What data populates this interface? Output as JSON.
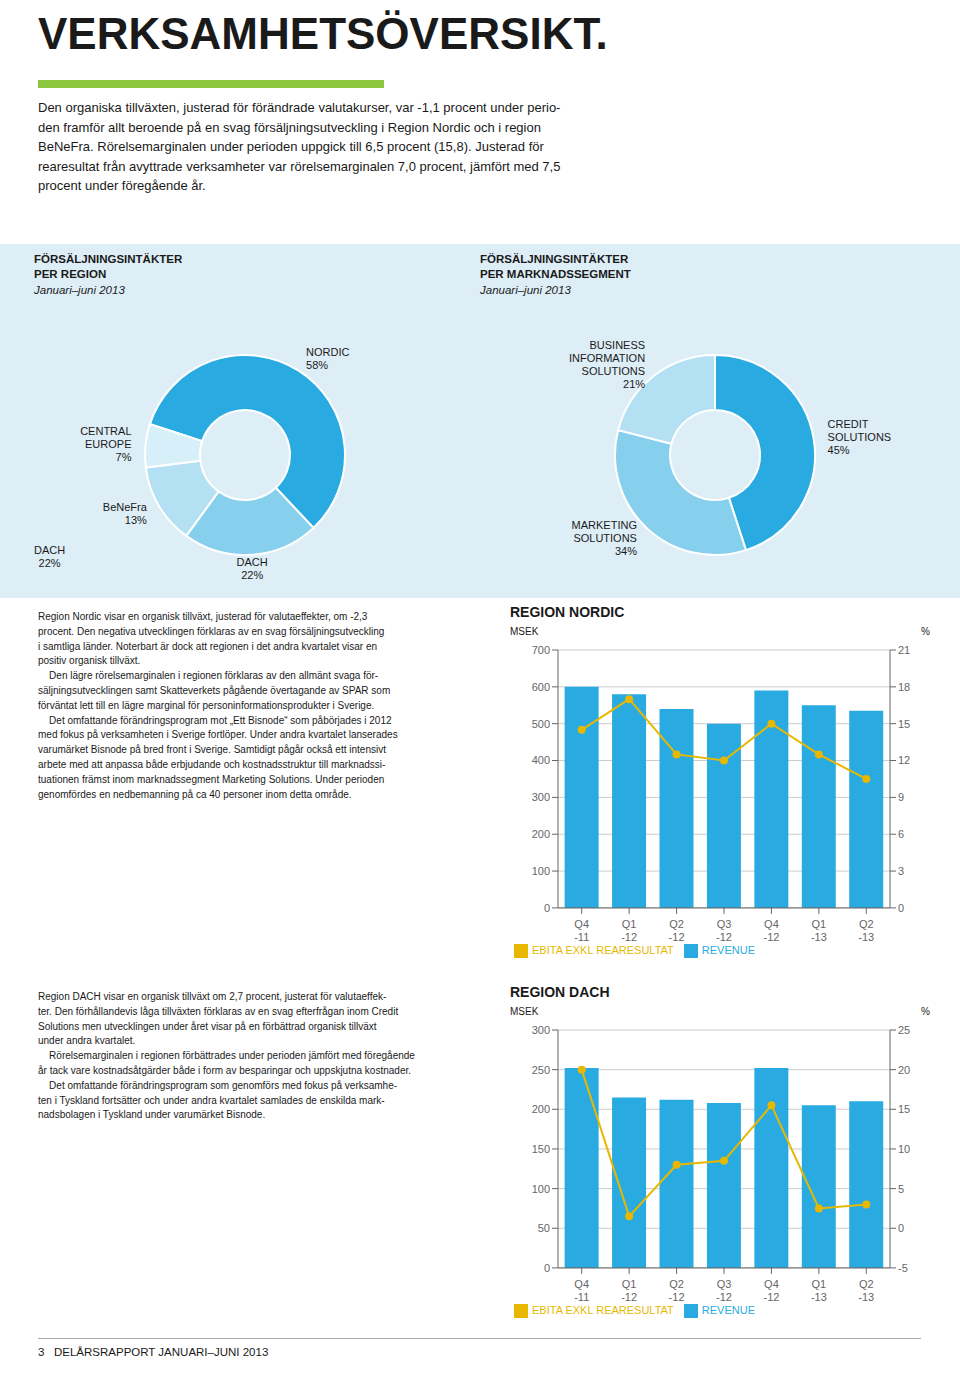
{
  "title": "VERKSAMHETSÖVERSIKT.",
  "annotations": [
    "Den organiska tillväxten, justerad för förändrade valutakurser, var -1,1 procent under perio-\nden framför allt beroende på en svag försäljningsutveckling i Region Nordic och i region\nBeNeFra. Rörelsemarginalen under perioden uppgick till 6,5 procent (15,8). Justerad för\nrearesultat från avyttrade verksamheter var rörelsemarginalen 7,0 procent, jämfört med 7,5\nprocent under föregående år.",
    "3   DELÅRSRAPPORT JANUARI–JUNI 2013"
  ],
  "chart_data": [
    {
      "type": "donut",
      "title": "FÖRSÄLJNINGSINTÄKTER\nPER REGION",
      "subtitle": "Januari–juni 2013",
      "categories": [
        "NORDIC",
        "DACH",
        "BeNeFra",
        "CENTRAL\nEUROPE"
      ],
      "values": [
        58,
        22,
        13,
        7
      ],
      "value_labels": [
        "58%",
        "22%",
        "13%",
        "7%"
      ],
      "colors": [
        "#29abe2",
        "#87d0ed",
        "#b3e0f2",
        "#d6eff8"
      ],
      "data_labels": true,
      "annotations": [
        "DACH\n22%"
      ]
    },
    {
      "type": "donut",
      "title": "FÖRSÄLJNINGSINTÄKTER\nPER MARKNADSSEGMENT",
      "subtitle": "Januari–juni 2013",
      "categories": [
        "CREDIT\nSOLUTIONS",
        "MARKETING\nSOLUTIONS",
        "BUSINESS\nINFORMATION\nSOLUTIONS"
      ],
      "values": [
        45,
        34,
        21
      ],
      "value_labels": [
        "45%",
        "34%",
        "21%"
      ],
      "colors": [
        "#29abe2",
        "#87d0ed",
        "#b3e0f2"
      ],
      "data_labels": true
    },
    {
      "type": "bar",
      "title": "REGION NORDIC",
      "annotations": [
        "Region Nordic visar en organisk tillväxt, justerad för valutaeffekter, om -2,3\nprocent. Den negativa utvecklingen förklaras av en svag försäljningsutveckling\ni samtliga länder. Noterbart är dock att regionen i det andra kvartalet visar en\npositiv organisk tillväxt.\n    Den lägre rörelsemarginalen i regionen förklaras av den allmänt svaga för-\nsäljningsutvecklingen samt Skatteverkets pågående övertagande av SPAR som\nförväntat lett till en lägre marginal för personinformationsprodukter i Sverige.\n    Det omfattande förändringsprogram mot „Ett Bisnode“ som påbörjades i 2012\nmed fokus på verksamheten i Sverige fortlöper. Under andra kvartalet lanserades\nvarumärket Bisnode på bred front i Sverige. Samtidigt pågår också ett intensivt\narbete med att anpassa både erbjudande och kostnadsstruktur till marknadssi-\ntuationen främst inom marknadssegment Marketing Solutions. Under perioden\ngenomfördes en nedbemanning på ca 40 personer inom detta område."
      ],
      "ylabel": "MSEK",
      "y2label": "%",
      "categories": [
        "Q4\n-11",
        "Q1\n-12",
        "Q2\n-12",
        "Q3\n-12",
        "Q4\n-12",
        "Q1\n-13",
        "Q2\n-13"
      ],
      "series": [
        {
          "name": "REVENUE",
          "type": "bar",
          "color": "#29abe2",
          "values": [
            600,
            580,
            540,
            500,
            590,
            550,
            535
          ]
        },
        {
          "name": "EBITA EXKL REARESULTAT",
          "type": "line",
          "color": "#e8b800",
          "marker": "circle",
          "axis": "y2",
          "values": [
            14.5,
            17.0,
            12.5,
            12.0,
            15.0,
            12.5,
            10.5
          ]
        }
      ],
      "ylim": [
        0,
        700
      ],
      "yticks": [
        0,
        100,
        200,
        300,
        400,
        500,
        600,
        700
      ],
      "y2lim": [
        0,
        21
      ],
      "y2ticks": [
        0,
        3,
        6,
        9,
        12,
        15,
        18,
        21
      ],
      "grid": true,
      "legend": "lower left"
    },
    {
      "type": "bar",
      "title": "REGION DACH",
      "annotations": [
        "Region DACH visar en organisk tillväxt om 2,7 procent, justerat för valutaeffek-\nter. Den förhållandevis låga tillväxten förklaras av en svag efterfrågan inom Credit\nSolutions men utvecklingen under året visar på en förbättrad organisk tillväxt\nunder andra kvartalet.\n    Rörelsemarginalen i regionen förbättrades under perioden jämfört med föregående\når tack vare kostnadsåtgärder både i form av besparingar och uppskjutna kostnader.\n    Det omfattande förändringsprogram som genomförs med fokus på verksamhe-\nten i Tyskland fortsätter och under andra kvartalet samlades de enskilda mark-\nnadsbolagen i Tyskland under varumärket Bisnode."
      ],
      "ylabel": "MSEK",
      "y2label": "%",
      "categories": [
        "Q4\n-11",
        "Q1\n-12",
        "Q2\n-12",
        "Q3\n-12",
        "Q4\n-12",
        "Q1\n-13",
        "Q2\n-13"
      ],
      "series": [
        {
          "name": "REVENUE",
          "type": "bar",
          "color": "#29abe2",
          "values": [
            252,
            215,
            212,
            208,
            252,
            205,
            210
          ]
        },
        {
          "name": "EBITA EXKL REARESULTAT",
          "type": "line",
          "color": "#e8b800",
          "marker": "circle",
          "axis": "y2",
          "values": [
            20.0,
            1.5,
            8.0,
            8.5,
            15.5,
            2.5,
            3.0
          ]
        }
      ],
      "ylim": [
        0,
        300
      ],
      "yticks": [
        0,
        50,
        100,
        150,
        200,
        250,
        300
      ],
      "y2lim": [
        -5,
        25
      ],
      "y2ticks": [
        -5,
        0,
        5,
        10,
        15,
        20,
        25
      ],
      "grid": true,
      "legend": "lower left"
    }
  ]
}
